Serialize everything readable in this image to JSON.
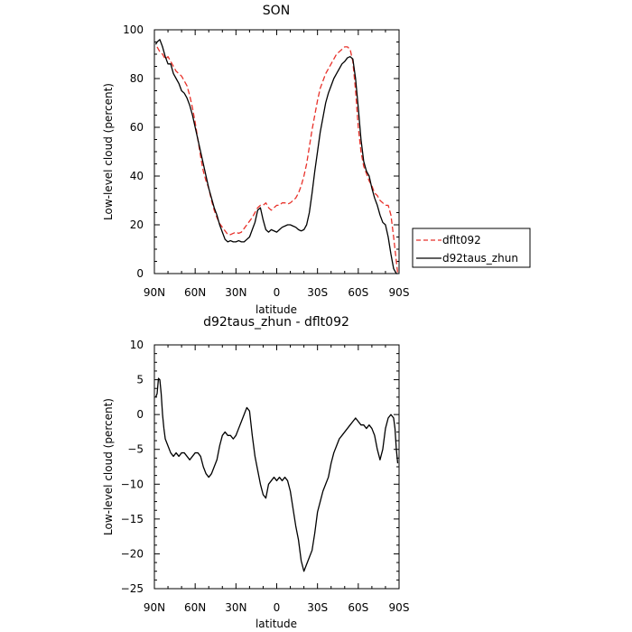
{
  "chart_data": [
    {
      "type": "line",
      "title": "SON",
      "xlabel": "latitude",
      "ylabel": "Low-level cloud (percent)",
      "xlim": [
        90,
        -90
      ],
      "ylim": [
        0,
        100
      ],
      "x_ticks": [
        "90N",
        "60N",
        "30N",
        "0",
        "30S",
        "60S",
        "90S"
      ],
      "y_ticks": [
        "0",
        "20",
        "40",
        "60",
        "80",
        "100"
      ],
      "legend": {
        "placement": "right",
        "entries": [
          "dflt092",
          "d92taus_zhun"
        ]
      },
      "series": [
        {
          "name": "dflt092",
          "color": "#e8312a",
          "style": "dashed",
          "x": [
            88,
            86,
            84,
            82,
            80,
            78,
            76,
            74,
            72,
            70,
            68,
            66,
            64,
            62,
            60,
            58,
            56,
            54,
            52,
            50,
            48,
            46,
            44,
            42,
            40,
            38,
            36,
            34,
            32,
            30,
            28,
            26,
            24,
            22,
            20,
            18,
            16,
            14,
            12,
            10,
            8,
            6,
            4,
            2,
            0,
            -2,
            -4,
            -6,
            -8,
            -10,
            -12,
            -14,
            -16,
            -18,
            -20,
            -22,
            -24,
            -26,
            -28,
            -30,
            -32,
            -34,
            -36,
            -38,
            -40,
            -42,
            -44,
            -46,
            -48,
            -50,
            -52,
            -54,
            -56,
            -58,
            -60,
            -62,
            -64,
            -66,
            -68,
            -70,
            -72,
            -74,
            -76,
            -78,
            -80,
            -82,
            -84,
            -86,
            -88,
            -89
          ],
          "y": [
            93,
            91,
            90,
            88,
            89,
            87,
            85,
            83,
            82,
            81,
            79,
            77,
            73,
            68,
            62,
            55,
            48,
            42,
            38,
            35,
            30,
            26,
            23,
            20.5,
            19,
            17.5,
            16,
            16,
            16.5,
            17,
            16.5,
            17,
            18.5,
            20,
            21.5,
            23,
            25,
            27,
            28,
            28,
            29,
            27,
            26,
            27,
            28,
            28,
            29,
            29,
            28.5,
            29,
            30,
            31,
            33,
            36,
            40,
            45,
            52,
            59,
            65,
            71,
            76,
            79,
            82,
            84,
            86,
            88,
            90,
            91,
            92,
            93,
            93,
            92,
            87,
            75,
            60,
            50,
            44,
            41,
            38,
            36,
            33,
            32,
            30,
            29,
            28,
            28,
            24,
            15,
            5,
            0
          ]
        },
        {
          "name": "d92taus_zhun",
          "color": "#000000",
          "style": "solid",
          "x": [
            89,
            88,
            86,
            84,
            82,
            80,
            78,
            76,
            74,
            72,
            70,
            68,
            66,
            64,
            62,
            60,
            58,
            56,
            54,
            52,
            50,
            48,
            46,
            44,
            42,
            40,
            38,
            36,
            34,
            32,
            30,
            28,
            26,
            24,
            22,
            20,
            18,
            16,
            14,
            12,
            10,
            8,
            6,
            4,
            2,
            0,
            -2,
            -4,
            -6,
            -8,
            -10,
            -12,
            -14,
            -16,
            -18,
            -20,
            -22,
            -24,
            -26,
            -28,
            -30,
            -32,
            -34,
            -36,
            -38,
            -40,
            -42,
            -44,
            -46,
            -48,
            -50,
            -52,
            -54,
            -56,
            -58,
            -60,
            -62,
            -64,
            -66,
            -68,
            -70,
            -72,
            -74,
            -76,
            -78,
            -80,
            -82,
            -84,
            -86,
            -88,
            -89
          ],
          "y": [
            94,
            95,
            96,
            93,
            89,
            86,
            86,
            82,
            80,
            78,
            75,
            74,
            72,
            69,
            65,
            60,
            55,
            50,
            45,
            40,
            35,
            31,
            27,
            24,
            20,
            17,
            14,
            13,
            13.5,
            13,
            13,
            13.5,
            13,
            13,
            14,
            15,
            18,
            21,
            26,
            27,
            22,
            18,
            17,
            18,
            17.5,
            17,
            18,
            19,
            19.5,
            20,
            20,
            19.5,
            19,
            18,
            17.5,
            18,
            20,
            25,
            33,
            42,
            50,
            58,
            64,
            70,
            74,
            77,
            80,
            82,
            84,
            86,
            87,
            88.5,
            89,
            88,
            80,
            68,
            55,
            46,
            42,
            40,
            35,
            31,
            28,
            24,
            21,
            20,
            15,
            8,
            2,
            0,
            0
          ]
        }
      ]
    },
    {
      "type": "line",
      "title": "d92taus_zhun - dflt092",
      "xlabel": "latitude",
      "ylabel": "Low-level cloud (percent)",
      "xlim": [
        90,
        -90
      ],
      "ylim": [
        -25,
        10
      ],
      "x_ticks": [
        "90N",
        "60N",
        "30N",
        "0",
        "30S",
        "60S",
        "90S"
      ],
      "y_ticks": [
        "-25",
        "-20",
        "-15",
        "-10",
        "-5",
        "0",
        "5",
        "10"
      ],
      "series": [
        {
          "color": "#000000",
          "style": "solid",
          "x": [
            89,
            88,
            87,
            86,
            85,
            84,
            83,
            82,
            80,
            78,
            76,
            74,
            72,
            70,
            68,
            66,
            64,
            62,
            60,
            58,
            56,
            54,
            52,
            50,
            48,
            46,
            44,
            42,
            40,
            38,
            36,
            34,
            32,
            30,
            28,
            26,
            24,
            22,
            20,
            18,
            16,
            14,
            12,
            10,
            8,
            6,
            4,
            2,
            0,
            -2,
            -4,
            -6,
            -8,
            -10,
            -12,
            -14,
            -16,
            -18,
            -20,
            -22,
            -24,
            -26,
            -28,
            -30,
            -32,
            -34,
            -36,
            -38,
            -40,
            -42,
            -44,
            -46,
            -48,
            -50,
            -52,
            -54,
            -56,
            -58,
            -60,
            -62,
            -64,
            -66,
            -68,
            -70,
            -72,
            -74,
            -76,
            -78,
            -80,
            -82,
            -84,
            -86,
            -87,
            -88,
            -89
          ],
          "y": [
            2.5,
            3,
            5.2,
            5,
            3,
            0,
            -2,
            -3.5,
            -4.5,
            -5.5,
            -6,
            -5.5,
            -6,
            -5.5,
            -5.5,
            -6,
            -6.5,
            -6,
            -5.5,
            -5.5,
            -6,
            -7.5,
            -8.5,
            -9,
            -8.5,
            -7.5,
            -6.5,
            -4.5,
            -3,
            -2.5,
            -3,
            -3,
            -3.5,
            -3,
            -2,
            -1,
            0,
            1,
            0.5,
            -3,
            -6,
            -8,
            -10,
            -11.5,
            -12,
            -10,
            -9.5,
            -9,
            -9.5,
            -9,
            -9.5,
            -9,
            -9.5,
            -11,
            -13.5,
            -16,
            -18,
            -21,
            -22.5,
            -21.5,
            -20.5,
            -19.5,
            -17,
            -14,
            -12.5,
            -11,
            -10,
            -9,
            -7,
            -5.5,
            -4.5,
            -3.5,
            -3,
            -2.5,
            -2,
            -1.5,
            -1,
            -0.5,
            -1,
            -1.5,
            -1.5,
            -2,
            -1.5,
            -2,
            -3,
            -5,
            -6.5,
            -5,
            -2,
            -0.5,
            0,
            -0.5,
            -2,
            -5,
            -7
          ]
        }
      ]
    }
  ]
}
